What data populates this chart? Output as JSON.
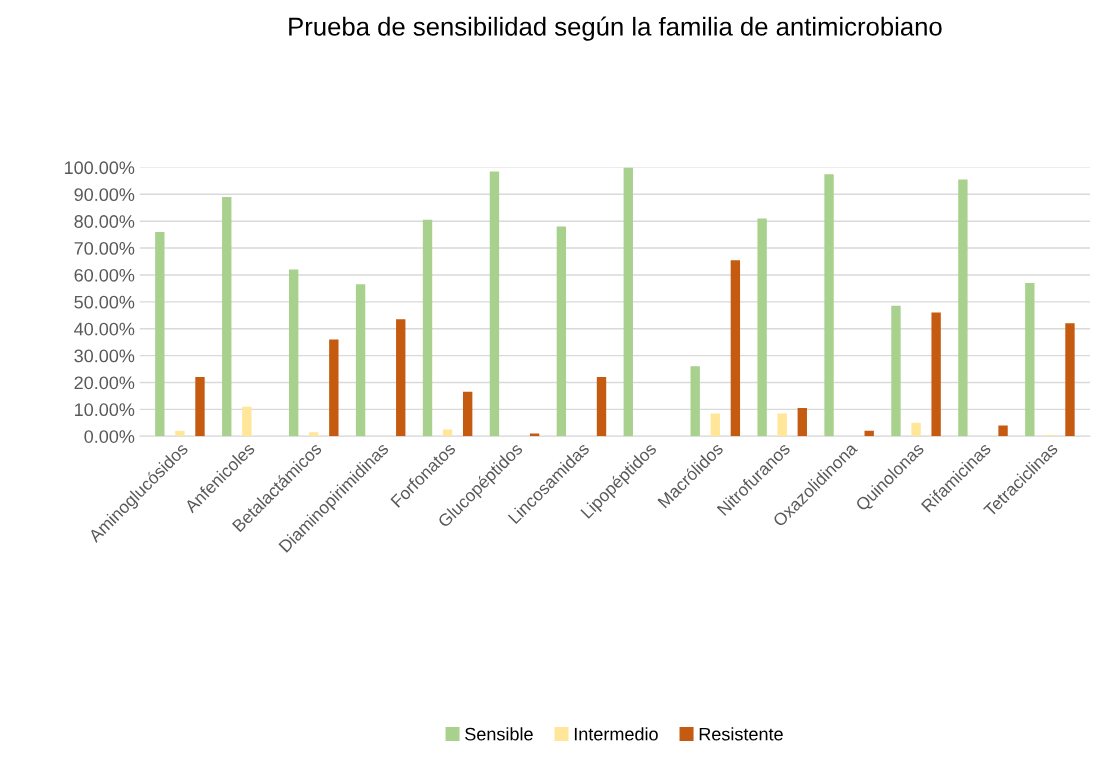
{
  "chart_data": {
    "type": "bar",
    "title": "Prueba de sensibilidad según la familia de antimicrobiano",
    "categories": [
      "Aminoglucósidos",
      "Anfenicoles",
      "Betalactámicos",
      "Diaminopirimidinas",
      "Forfonatos",
      "Glucopéptidos",
      "Lincosamidas",
      "Lipopéptidos",
      "Macrólidos",
      "Nitrofuranos",
      "Oxazolidinona",
      "Quinolonas",
      "Rifamicinas",
      "Tetraciclinas"
    ],
    "series": [
      {
        "name": "Sensible",
        "color": "#a9d18e",
        "values": [
          76,
          89,
          62,
          56.5,
          80.5,
          98.5,
          78,
          100,
          26,
          81,
          97.5,
          48.5,
          95.5,
          57
        ]
      },
      {
        "name": "Intermedio",
        "color": "#ffe699",
        "values": [
          2,
          11,
          1.5,
          0,
          2.5,
          0,
          0,
          0,
          8.5,
          8.5,
          0,
          5,
          0,
          0.5
        ]
      },
      {
        "name": "Resistente",
        "color": "#c55a11",
        "values": [
          22,
          0,
          36,
          43.5,
          16.5,
          1,
          22,
          0,
          65.5,
          10.5,
          2,
          46,
          4,
          42
        ]
      }
    ],
    "ylim": [
      0,
      100
    ],
    "yticks": [
      {
        "value": 0,
        "label": "0.00%"
      },
      {
        "value": 10,
        "label": "10.00%"
      },
      {
        "value": 20,
        "label": "20.00%"
      },
      {
        "value": 30,
        "label": "30.00%"
      },
      {
        "value": 40,
        "label": "40.00%"
      },
      {
        "value": 50,
        "label": "50.00%"
      },
      {
        "value": 60,
        "label": "60.00%"
      },
      {
        "value": 70,
        "label": "70.00%"
      },
      {
        "value": 80,
        "label": "80.00%"
      },
      {
        "value": 90,
        "label": "90.00%"
      },
      {
        "value": 100,
        "label": "100.00%"
      }
    ],
    "grid": "y",
    "legend": "bottom"
  }
}
